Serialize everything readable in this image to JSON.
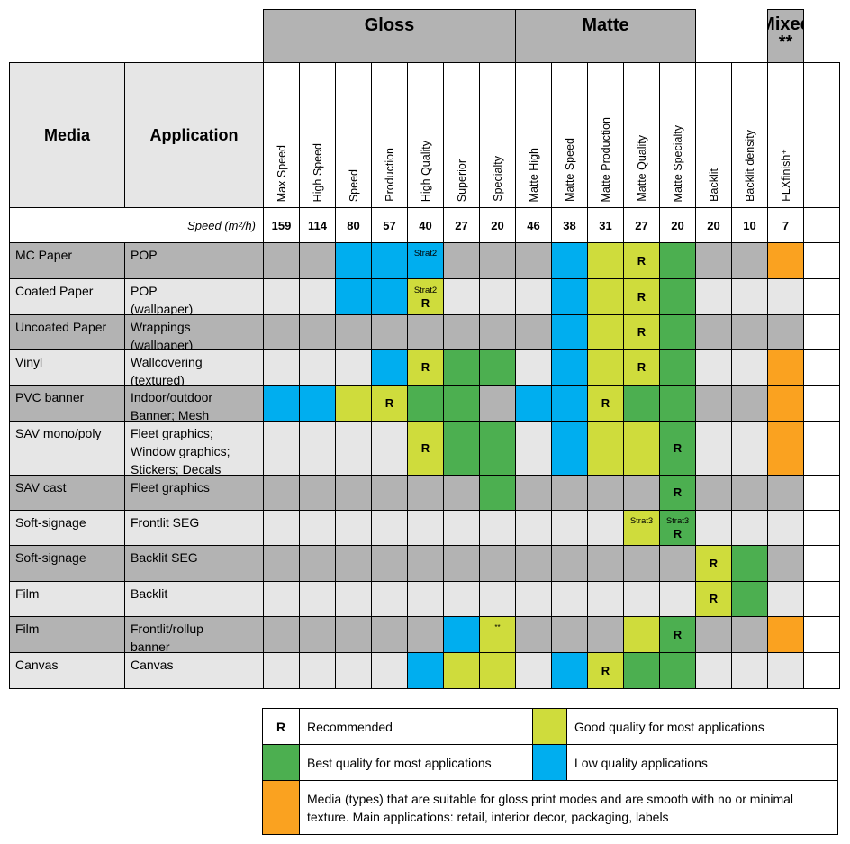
{
  "colors": {
    "dark": "#b3b3b3",
    "light": "#e6e6e6",
    "white": "#ffffff",
    "blue": "#00aeef",
    "yellow": "#cfdc3c",
    "green": "#4caf50",
    "orange": "#faa220"
  },
  "groups": [
    {
      "label": "Gloss",
      "extra": ""
    },
    {
      "label": "Matte",
      "extra": ""
    },
    {
      "label": "Mixed",
      "extra": "**"
    }
  ],
  "header": {
    "media": "Media",
    "application": "Application",
    "speed_label": "Speed (m²/h)"
  },
  "modes": [
    {
      "name": "Max Speed",
      "speed": "159"
    },
    {
      "name": "High Speed",
      "speed": "114"
    },
    {
      "name": "Speed",
      "speed": "80"
    },
    {
      "name": "Production",
      "speed": "57"
    },
    {
      "name": "High Quality",
      "speed": "40"
    },
    {
      "name": "Superior",
      "speed": "27"
    },
    {
      "name": "Specialty",
      "speed": "20"
    },
    {
      "name": "Matte High",
      "speed": "46"
    },
    {
      "name": "Matte Speed",
      "speed": "38"
    },
    {
      "name": "Matte Production",
      "speed": "31"
    },
    {
      "name": "Matte Quality",
      "speed": "27"
    },
    {
      "name": "Matte Specialty",
      "speed": "20"
    },
    {
      "name": "Backlit",
      "speed": "20"
    },
    {
      "name": "Backlit density",
      "speed": "10"
    },
    {
      "name": "FLXfinish⁺",
      "speed": "7"
    },
    {
      "name": "",
      "speed": ""
    }
  ],
  "rows": [
    {
      "media": "MC Paper",
      "application": [
        "POP"
      ],
      "cells": [
        "d",
        "d",
        "b",
        "b",
        {
          "c": "b",
          "s": "Strat2"
        },
        "d",
        "d",
        "d",
        "b",
        "y",
        {
          "c": "y",
          "r": "R"
        },
        "g",
        "d",
        "d",
        "o",
        "w"
      ]
    },
    {
      "media": "Coated Paper",
      "application": [
        "POP",
        "(wallpaper)"
      ],
      "cells": [
        "l",
        "l",
        "b",
        "b",
        {
          "c": "y",
          "s": "Strat2",
          "r": "R"
        },
        "l",
        "l",
        "l",
        "b",
        "y",
        {
          "c": "y",
          "r": "R"
        },
        "g",
        "l",
        "l",
        "l",
        "w"
      ]
    },
    {
      "media": "Uncoated Paper",
      "application": [
        "Wrappings",
        "(wallpaper)"
      ],
      "cells": [
        "d",
        "d",
        "d",
        "d",
        "d",
        "d",
        "d",
        "d",
        "b",
        "y",
        {
          "c": "y",
          "r": "R"
        },
        "g",
        "d",
        "d",
        "d",
        "w"
      ]
    },
    {
      "media": "Vinyl",
      "application": [
        "Wallcovering",
        "(textured)"
      ],
      "cells": [
        "l",
        "l",
        "l",
        "b",
        {
          "c": "y",
          "r": "R"
        },
        "g",
        "g",
        "l",
        "b",
        "y",
        {
          "c": "y",
          "r": "R"
        },
        "g",
        "l",
        "l",
        "o",
        "w"
      ]
    },
    {
      "media": "PVC banner",
      "application": [
        "Indoor/outdoor",
        "Banner; Mesh"
      ],
      "cells": [
        "b",
        "b",
        "y",
        {
          "c": "y",
          "r": "R"
        },
        "g",
        "g",
        "d",
        "b",
        "b",
        {
          "c": "y",
          "r": "R"
        },
        "g",
        "g",
        "d",
        "d",
        "o",
        "w"
      ]
    },
    {
      "media": "SAV mono/poly",
      "application": [
        "Fleet graphics;",
        "Window graphics;",
        "Stickers; Decals"
      ],
      "cells": [
        "l",
        "l",
        "l",
        "l",
        {
          "c": "y",
          "r": "R"
        },
        "g",
        "g",
        "l",
        "b",
        "y",
        "y",
        {
          "c": "g",
          "r": "R"
        },
        "l",
        "l",
        "o",
        "w"
      ]
    },
    {
      "media": "SAV cast",
      "application": [
        "Fleet graphics"
      ],
      "cells": [
        "d",
        "d",
        "d",
        "d",
        "d",
        "d",
        "g",
        "d",
        "d",
        "d",
        "d",
        {
          "c": "g",
          "r": "R"
        },
        "d",
        "d",
        "d",
        "w"
      ]
    },
    {
      "media": "Soft-signage",
      "application": [
        "Frontlit SEG"
      ],
      "cells": [
        "l",
        "l",
        "l",
        "l",
        "l",
        "l",
        "l",
        "l",
        "l",
        "l",
        {
          "c": "y",
          "s": "Strat3"
        },
        {
          "c": "g",
          "s": "Strat3",
          "r": "R"
        },
        "l",
        "l",
        "l",
        "w"
      ]
    },
    {
      "media": "Soft-signage",
      "application": [
        "Backlit SEG"
      ],
      "cells": [
        "d",
        "d",
        "d",
        "d",
        "d",
        "d",
        "d",
        "d",
        "d",
        "d",
        "d",
        "d",
        {
          "c": "y",
          "r": "R"
        },
        "g",
        "d",
        "w"
      ]
    },
    {
      "media": "Film",
      "application": [
        "Backlit"
      ],
      "cells": [
        "l",
        "l",
        "l",
        "l",
        "l",
        "l",
        "l",
        "l",
        "l",
        "l",
        "l",
        "l",
        {
          "c": "y",
          "r": "R"
        },
        "g",
        "l",
        "w"
      ]
    },
    {
      "media": "Film",
      "application": [
        "Frontlit/rollup",
        "banner"
      ],
      "cells": [
        "d",
        "d",
        "d",
        "d",
        "d",
        "b",
        {
          "c": "y",
          "star": "**"
        },
        "d",
        "d",
        "d",
        "y",
        {
          "c": "g",
          "r": "R"
        },
        "d",
        "d",
        "o",
        "w"
      ]
    },
    {
      "media": "Canvas",
      "application": [
        "Canvas"
      ],
      "cells": [
        "l",
        "l",
        "l",
        "l",
        "b",
        "y",
        "y",
        "l",
        "b",
        {
          "c": "y",
          "r": "R"
        },
        "g",
        "g",
        "l",
        "l",
        "l",
        "w"
      ]
    }
  ],
  "legend": {
    "recommended_mark": "R",
    "recommended": "Recommended",
    "good": "Good quality for most applications",
    "best": "Best quality for most applications",
    "low": "Low quality applications",
    "gloss_media": "Media (types) that are suitable for gloss print modes and are smooth with no or minimal texture. Main applications: retail, interior decor, packaging, labels"
  }
}
